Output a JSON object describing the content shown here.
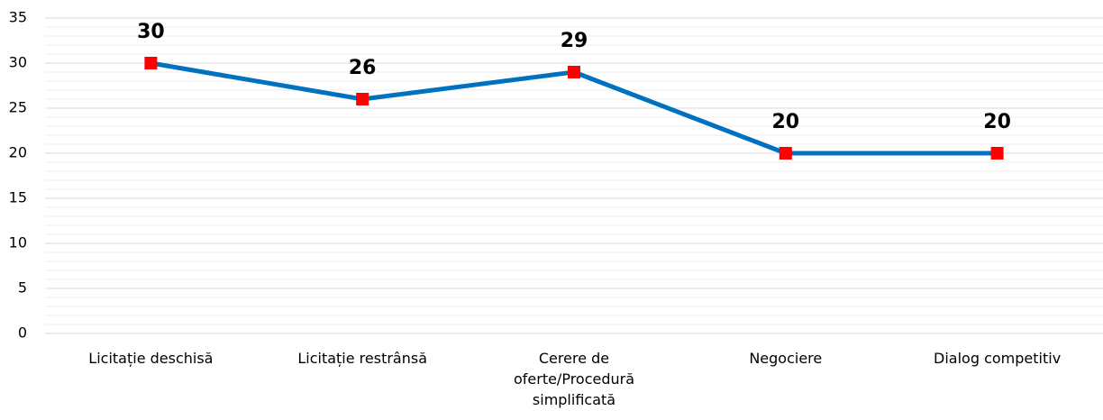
{
  "chart_data": {
    "type": "line",
    "categories": [
      "Licitație deschisă",
      "Licitație restrânsă",
      "Cerere de oferte/Procedură simplificată",
      "Negociere",
      "Dialog competitiv"
    ],
    "series": [
      {
        "name": null,
        "color": "#0070c0",
        "marker_color": "#ff0000",
        "values": [
          30,
          26,
          29,
          20,
          20
        ]
      }
    ],
    "ylim": [
      0,
      35
    ],
    "yticks": [
      0,
      5,
      10,
      15,
      20,
      25,
      30,
      35
    ],
    "grid": true,
    "minor_grid": true
  }
}
